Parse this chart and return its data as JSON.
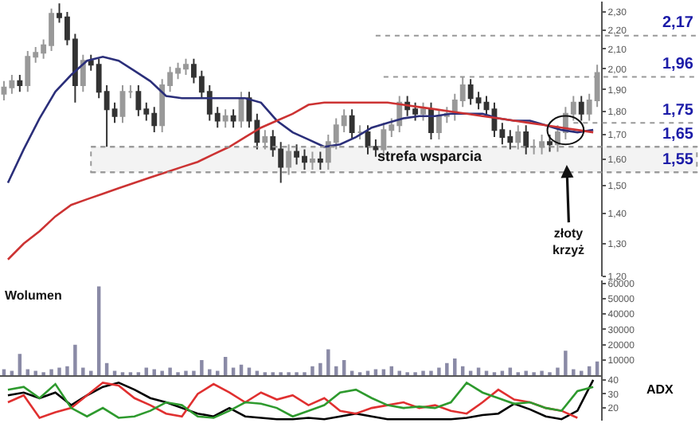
{
  "chart_data": [
    {
      "type": "candlestick",
      "colors": [
        "#999999",
        "#999999",
        "#333333",
        "#999999",
        "#999999",
        "#999999",
        "#999999",
        "#333333",
        "#333333",
        "#333333",
        "#999999",
        "#333333",
        "#333333",
        "#333333",
        "#333333",
        "#999999",
        "#999999",
        "#333333",
        "#333333",
        "#333333",
        "#999999",
        "#999999",
        "#999999",
        "#999999",
        "#333333",
        "#333333",
        "#333333",
        "#333333",
        "#999999",
        "#333333",
        "#999999",
        "#333333",
        "#333333",
        "#999999",
        "#333333",
        "#333333",
        "#999999",
        "#333333",
        "#333333",
        "#999999",
        "#333333",
        "#999999",
        "#999999",
        "#999999",
        "#333333",
        "#999999",
        "#333333",
        "#333333",
        "#999999",
        "#999999",
        "#999999",
        "#333333",
        "#333333",
        "#999999",
        "#333333",
        "#999999",
        "#999999",
        "#999999",
        "#999999",
        "#333333",
        "#333333",
        "#333333",
        "#333333",
        "#333333",
        "#333333",
        "#999999",
        "#333333",
        "#999999",
        "#999999",
        "#333333",
        "#999999",
        "#999999",
        "#999999",
        "#333333",
        "#999999",
        "#999999"
      ],
      "categories": [
        null,
        null,
        null,
        null,
        null,
        null,
        null,
        null,
        null,
        null,
        null,
        null,
        null,
        null,
        null,
        null,
        null,
        null,
        null,
        null,
        null,
        null,
        null,
        null,
        null,
        null,
        null,
        null,
        null,
        null,
        null,
        null,
        null,
        null,
        null,
        null,
        null,
        null,
        null,
        null,
        null,
        null,
        null,
        null,
        null,
        null,
        null,
        null,
        null,
        null,
        null,
        null,
        null,
        null,
        null,
        null,
        null,
        null,
        null,
        null,
        null,
        null,
        null,
        null,
        null,
        null,
        null,
        null,
        null,
        null,
        null,
        null,
        null,
        null,
        null,
        null
      ],
      "ohlc": [
        [
          1.88,
          1.94,
          1.85,
          1.91
        ],
        [
          1.91,
          1.97,
          1.88,
          1.94
        ],
        [
          1.94,
          1.97,
          1.89,
          1.92
        ],
        [
          1.92,
          2.09,
          1.89,
          2.06
        ],
        [
          2.06,
          2.11,
          2.03,
          2.08
        ],
        [
          2.08,
          2.15,
          2.05,
          2.12
        ],
        [
          2.12,
          2.32,
          2.09,
          2.29
        ],
        [
          2.29,
          2.35,
          2.24,
          2.27
        ],
        [
          2.27,
          2.3,
          2.12,
          2.15
        ],
        [
          2.15,
          2.18,
          1.84,
          1.92
        ],
        [
          1.92,
          2.07,
          1.89,
          2.04
        ],
        [
          2.04,
          2.07,
          1.99,
          2.02
        ],
        [
          2.02,
          2.05,
          1.86,
          1.89
        ],
        [
          1.89,
          1.92,
          1.65,
          1.81
        ],
        [
          1.81,
          1.84,
          1.75,
          1.78
        ],
        [
          1.78,
          1.92,
          1.75,
          1.89
        ],
        [
          1.89,
          1.92,
          1.86,
          1.89
        ],
        [
          1.89,
          1.92,
          1.78,
          1.81
        ],
        [
          1.81,
          1.84,
          1.76,
          1.79
        ],
        [
          1.79,
          1.82,
          1.71,
          1.74
        ],
        [
          1.74,
          1.95,
          1.71,
          1.92
        ],
        [
          1.92,
          2.01,
          1.89,
          1.98
        ],
        [
          1.98,
          2.03,
          1.95,
          2.0
        ],
        [
          2.0,
          2.05,
          1.97,
          2.02
        ],
        [
          2.02,
          2.05,
          1.93,
          1.96
        ],
        [
          1.96,
          1.99,
          1.86,
          1.89
        ],
        [
          1.89,
          1.92,
          1.76,
          1.79
        ],
        [
          1.79,
          1.82,
          1.73,
          1.76
        ],
        [
          1.76,
          1.81,
          1.73,
          1.78
        ],
        [
          1.78,
          1.81,
          1.73,
          1.76
        ],
        [
          1.76,
          1.89,
          1.73,
          1.86
        ],
        [
          1.86,
          1.89,
          1.73,
          1.76
        ],
        [
          1.76,
          1.79,
          1.64,
          1.67
        ],
        [
          1.67,
          1.72,
          1.64,
          1.69
        ],
        [
          1.69,
          1.72,
          1.61,
          1.64
        ],
        [
          1.64,
          1.67,
          1.51,
          1.57
        ],
        [
          1.57,
          1.66,
          1.54,
          1.63
        ],
        [
          1.63,
          1.66,
          1.58,
          1.61
        ],
        [
          1.61,
          1.64,
          1.56,
          1.59
        ],
        [
          1.59,
          1.63,
          1.56,
          1.6
        ],
        [
          1.6,
          1.63,
          1.56,
          1.59
        ],
        [
          1.59,
          1.7,
          1.56,
          1.67
        ],
        [
          1.67,
          1.77,
          1.64,
          1.74
        ],
        [
          1.74,
          1.81,
          1.71,
          1.78
        ],
        [
          1.78,
          1.81,
          1.68,
          1.71
        ],
        [
          1.71,
          1.74,
          1.68,
          1.71
        ],
        [
          1.71,
          1.74,
          1.62,
          1.65
        ],
        [
          1.65,
          1.68,
          1.61,
          1.64
        ],
        [
          1.64,
          1.75,
          1.61,
          1.72
        ],
        [
          1.72,
          1.77,
          1.69,
          1.74
        ],
        [
          1.74,
          1.87,
          1.71,
          1.84
        ],
        [
          1.84,
          1.87,
          1.78,
          1.81
        ],
        [
          1.81,
          1.84,
          1.76,
          1.79
        ],
        [
          1.79,
          1.84,
          1.76,
          1.81
        ],
        [
          1.81,
          1.84,
          1.68,
          1.71
        ],
        [
          1.71,
          1.81,
          1.68,
          1.78
        ],
        [
          1.78,
          1.82,
          1.75,
          1.79
        ],
        [
          1.79,
          1.88,
          1.76,
          1.85
        ],
        [
          1.85,
          1.96,
          1.82,
          1.92
        ],
        [
          1.92,
          1.95,
          1.83,
          1.86
        ],
        [
          1.86,
          1.89,
          1.81,
          1.84
        ],
        [
          1.84,
          1.87,
          1.78,
          1.81
        ],
        [
          1.81,
          1.84,
          1.69,
          1.72
        ],
        [
          1.72,
          1.75,
          1.66,
          1.69
        ],
        [
          1.69,
          1.72,
          1.64,
          1.67
        ],
        [
          1.67,
          1.74,
          1.64,
          1.71
        ],
        [
          1.71,
          1.74,
          1.62,
          1.65
        ],
        [
          1.65,
          1.68,
          1.62,
          1.65
        ],
        [
          1.65,
          1.7,
          1.62,
          1.67
        ],
        [
          1.67,
          1.7,
          1.63,
          1.66
        ],
        [
          1.66,
          1.74,
          1.63,
          1.71
        ],
        [
          1.71,
          1.82,
          1.68,
          1.79
        ],
        [
          1.79,
          1.87,
          1.76,
          1.84
        ],
        [
          1.84,
          1.87,
          1.76,
          1.79
        ],
        [
          1.79,
          1.88,
          1.76,
          1.85
        ],
        [
          1.85,
          2.02,
          1.82,
          1.98
        ]
      ],
      "log": true,
      "ylim": [
        1.2,
        2.36
      ],
      "yticks": [
        {
          "value": 1.2,
          "label": "1,20"
        },
        {
          "value": 1.3,
          "label": "1,30"
        },
        {
          "value": 1.4,
          "label": "1,40"
        },
        {
          "value": 1.5,
          "label": "1,50"
        },
        {
          "value": 1.6,
          "label": "1,60"
        },
        {
          "value": 1.7,
          "label": "1,70"
        },
        {
          "value": 1.8,
          "label": "1,80"
        },
        {
          "value": 1.9,
          "label": "1,90"
        },
        {
          "value": 2.0,
          "label": "2,00"
        },
        {
          "value": 2.1,
          "label": "2,10"
        },
        {
          "value": 2.2,
          "label": "2,20"
        },
        {
          "value": 2.3,
          "label": "2,30"
        }
      ],
      "tick_labels": "y",
      "ref_lines": [
        {
          "axis": "y",
          "value": 2.17,
          "label": "2,17",
          "color": "#999999",
          "line_style": "dotted"
        },
        {
          "axis": "y",
          "value": 1.96,
          "label": "1,96",
          "color": "#999999",
          "line_style": "dotted"
        },
        {
          "axis": "y",
          "value": 1.75,
          "label": "1,75",
          "color": "#999999",
          "line_style": "dotted"
        },
        {
          "axis": "y",
          "value": 1.65,
          "label": "1,65",
          "color": "#999999",
          "line_style": "dotted"
        },
        {
          "axis": "y",
          "value": 1.55,
          "label": "1,55",
          "color": "#999999",
          "line_style": "dotted"
        }
      ],
      "bands": [
        {
          "axis": "y",
          "from": 1.55,
          "to": 1.65,
          "color": "#999999"
        }
      ],
      "annotations": [
        "strefa wsparcia",
        {
          "text": "złoty\nkrzyż",
          "y": 1.72
        }
      ]
    },
    {
      "type": "line",
      "log": true,
      "ylim": [
        1.2,
        2.36
      ],
      "tick_labels": false,
      "categories": [
        null,
        null,
        null,
        null,
        null,
        null,
        null,
        null,
        null,
        null,
        null,
        null,
        null,
        null,
        null,
        null,
        null,
        null,
        null,
        null,
        null,
        null,
        null,
        null,
        null,
        null,
        null,
        null,
        null,
        null,
        null,
        null,
        null,
        null,
        null,
        null,
        null,
        null
      ],
      "series": [
        {
          "color": "#2b2f7a",
          "values": [
            1.51,
            1.64,
            1.77,
            1.89,
            1.97,
            2.04,
            2.06,
            2.04,
            1.99,
            1.94,
            1.87,
            1.86,
            1.86,
            1.86,
            1.86,
            1.86,
            1.84,
            1.76,
            1.71,
            1.68,
            1.65,
            1.66,
            1.69,
            1.73,
            1.75,
            1.77,
            1.78,
            1.78,
            1.79,
            1.79,
            1.79,
            1.77,
            1.76,
            1.76,
            1.74,
            1.72,
            1.71,
            1.72
          ]
        },
        {
          "color": "#cc3333",
          "values": [
            1.25,
            1.3,
            1.34,
            1.39,
            1.43,
            1.45,
            1.47,
            1.49,
            1.51,
            1.53,
            1.55,
            1.57,
            1.59,
            1.62,
            1.65,
            1.69,
            1.73,
            1.76,
            1.79,
            1.83,
            1.84,
            1.84,
            1.84,
            1.84,
            1.84,
            1.83,
            1.82,
            1.81,
            1.8,
            1.79,
            1.78,
            1.77,
            1.76,
            1.75,
            1.74,
            1.73,
            1.72,
            1.71
          ]
        }
      ]
    },
    {
      "type": "bar",
      "title": "Wolumen",
      "color": "#8a8aa6",
      "categories": [
        null,
        null,
        null,
        null,
        null,
        null,
        null,
        null,
        null,
        null,
        null,
        null,
        null,
        null,
        null,
        null,
        null,
        null,
        null,
        null,
        null,
        null,
        null,
        null,
        null,
        null,
        null,
        null,
        null,
        null,
        null,
        null,
        null,
        null,
        null,
        null,
        null,
        null,
        null,
        null,
        null,
        null,
        null,
        null,
        null,
        null,
        null,
        null,
        null,
        null,
        null,
        null,
        null,
        null,
        null,
        null,
        null,
        null,
        null,
        null,
        null,
        null,
        null,
        null,
        null,
        null,
        null,
        null,
        null,
        null,
        null,
        null,
        null,
        null,
        null,
        null
      ],
      "values": [
        4000,
        3000,
        14000,
        4000,
        3000,
        2000,
        4000,
        5000,
        6000,
        20000,
        5000,
        3000,
        58000,
        8000,
        3000,
        2000,
        2000,
        2000,
        5000,
        4000,
        3000,
        5000,
        2000,
        3000,
        3000,
        10000,
        4000,
        3000,
        12000,
        5000,
        7000,
        5000,
        3000,
        2000,
        2000,
        2000,
        2000,
        2000,
        2000,
        6000,
        8000,
        17000,
        6000,
        10000,
        3000,
        2000,
        3000,
        4000,
        4000,
        6000,
        3000,
        2000,
        2000,
        3000,
        3000,
        5000,
        8000,
        11000,
        6000,
        3000,
        5000,
        3000,
        2000,
        3000,
        5000,
        2000,
        3000,
        2000,
        3000,
        2000,
        5000,
        16000,
        4000,
        3000,
        6000,
        9000
      ],
      "ylim": [
        0,
        62000
      ],
      "yticks": [
        10000,
        20000,
        30000,
        40000,
        50000,
        60000
      ],
      "tick_labels": "y"
    },
    {
      "type": "line",
      "categories": [
        null,
        null,
        null,
        null,
        null,
        null,
        null,
        null,
        null,
        null,
        null,
        null,
        null,
        null,
        null,
        null,
        null,
        null,
        null,
        null,
        null,
        null,
        null,
        null,
        null,
        null,
        null,
        null,
        null,
        null,
        null,
        null,
        null,
        null,
        null,
        null,
        null,
        null
      ],
      "series": [
        {
          "name": "ADX",
          "color": "#000000",
          "values": [
            29,
            31,
            27,
            31,
            22,
            29,
            35,
            38,
            33,
            27,
            24,
            20,
            16,
            14,
            20,
            14,
            13,
            12,
            12,
            13,
            12,
            14,
            16,
            14,
            12,
            12,
            12,
            12,
            12,
            13,
            15,
            16,
            23,
            19,
            14,
            12,
            18,
            40
          ]
        },
        {
          "color": "#e03030",
          "values": [
            24,
            29,
            13,
            17,
            20,
            29,
            38,
            36,
            27,
            22,
            16,
            14,
            30,
            37,
            31,
            24,
            31,
            26,
            29,
            22,
            27,
            18,
            16,
            20,
            22,
            24,
            20,
            22,
            18,
            16,
            24,
            33,
            26,
            24,
            20,
            18,
            13,
            null
          ]
        },
        {
          "color": "#2e9a2e",
          "values": [
            33,
            35,
            27,
            37,
            20,
            14,
            20,
            13,
            14,
            18,
            24,
            22,
            14,
            13,
            18,
            24,
            23,
            20,
            14,
            18,
            22,
            31,
            33,
            27,
            22,
            20,
            21,
            20,
            24,
            38,
            31,
            27,
            23,
            24,
            20,
            18,
            32,
            35
          ]
        }
      ],
      "ylim": [
        11,
        42
      ],
      "yticks": [
        20,
        30,
        40
      ],
      "tick_labels": "y"
    }
  ]
}
